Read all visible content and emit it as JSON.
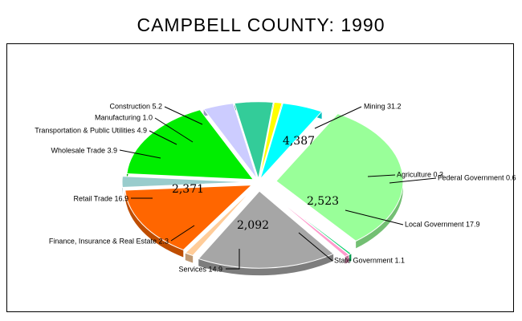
{
  "title": "CAMPBELL COUNTY:  1990",
  "chart_data": {
    "type": "pie",
    "title": "CAMPBELL COUNTY:  1990",
    "slices": [
      {
        "name": "Mining",
        "label": "Mining 31.2",
        "percent": 31.2,
        "color": "#99ff99",
        "value_label": "4,387"
      },
      {
        "name": "Agriculture",
        "label": "Agriculture 0.3",
        "percent": 0.3,
        "color": "#00cc66"
      },
      {
        "name": "Federal Government",
        "label": "Federal Government 0.6",
        "percent": 0.6,
        "color": "#ff99cc"
      },
      {
        "name": "Local Government",
        "label": "Local Government 17.9",
        "percent": 17.9,
        "color": "#a6a6a6",
        "value_label": "2,523"
      },
      {
        "name": "State Government",
        "label": "State Government 1.1",
        "percent": 1.1,
        "color": "#ffcc99"
      },
      {
        "name": "Services",
        "label": "Services 14.9",
        "percent": 14.9,
        "color": "#ff6600",
        "value_label": "2,092"
      },
      {
        "name": "Finance, Insurance & Real Estate",
        "label": "Finance, Insurance & Real Estate 2.3",
        "percent": 2.3,
        "color": "#99cccc"
      },
      {
        "name": "Retail Trade",
        "label": "Retail Trade 16.9",
        "percent": 16.9,
        "color": "#00ee00",
        "value_label": "2,371"
      },
      {
        "name": "Wholesale Trade",
        "label": "Wholesale Trade 3.9",
        "percent": 3.9,
        "color": "#ccccff"
      },
      {
        "name": "Transportation & Public Utilities",
        "label": "Transportation & Public Utilities 4.9",
        "percent": 4.9,
        "color": "#33cc99"
      },
      {
        "name": "Manufacturing",
        "label": "Manufacturing 1.0",
        "percent": 1.0,
        "color": "#ffff00"
      },
      {
        "name": "Construction",
        "label": "Construction 5.2",
        "percent": 5.2,
        "color": "#00ffff"
      }
    ]
  }
}
